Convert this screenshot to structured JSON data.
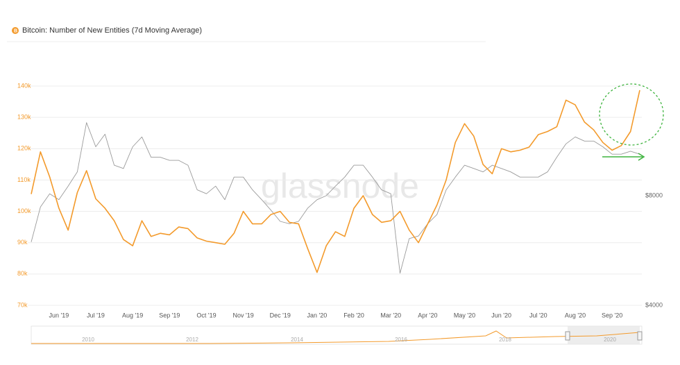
{
  "chart_data": {
    "type": "line",
    "title": "Bitcoin: Number of New Entities (7d Moving Average)",
    "watermark": "glassnode",
    "x": [
      null,
      null,
      null,
      "Jun '19",
      null,
      null,
      null,
      "Jul '19",
      null,
      null,
      null,
      "Aug '19",
      null,
      null,
      null,
      "Sep '19",
      null,
      null,
      null,
      "Oct '19",
      null,
      null,
      null,
      "Nov '19",
      null,
      null,
      null,
      "Dec '19",
      null,
      null,
      null,
      "Jan '20",
      null,
      null,
      null,
      "Feb '20",
      null,
      null,
      null,
      "Mar '20",
      null,
      null,
      null,
      "Apr '20",
      null,
      null,
      null,
      "May '20",
      null,
      null,
      null,
      "Jun '20",
      null,
      null,
      null,
      "Jul '20",
      null,
      null,
      null,
      "Aug '20",
      null,
      null,
      null,
      "Sep '20",
      null,
      null,
      null
    ],
    "series": [
      {
        "color": "#f39a2b",
        "values": [
          105500,
          119000,
          111000,
          101000,
          94000,
          106000,
          113000,
          104000,
          101000,
          97000,
          91000,
          89000,
          97000,
          92000,
          93000,
          92500,
          95000,
          94500,
          91500,
          90500,
          90000,
          89500,
          93000,
          100000,
          96000,
          96000,
          99000,
          100000,
          96500,
          96000,
          88000,
          80500,
          89000,
          93500,
          92000,
          101000,
          105000,
          99000,
          96500,
          97000,
          100000,
          94000,
          90000,
          96000,
          102000,
          110000,
          122000,
          128000,
          124000,
          115000,
          112000,
          120000,
          119000,
          119500,
          120500,
          124500,
          125500,
          127000,
          135500,
          134000,
          128500,
          126000,
          122000,
          119500,
          121000,
          125500,
          138700
        ]
      },
      {
        "color": "#9a9a9a",
        "axis": "y2",
        "values": [
          5970,
          7450,
          8100,
          7800,
          8500,
          9300,
          12700,
          10900,
          11800,
          9700,
          9500,
          10900,
          11600,
          10200,
          10200,
          10000,
          10000,
          9700,
          8300,
          8100,
          8500,
          7800,
          9000,
          9000,
          8300,
          7800,
          7300,
          6800,
          6700,
          6800,
          7400,
          7800,
          8000,
          8500,
          9000,
          9700,
          9700,
          9000,
          8300,
          8100,
          4900,
          6100,
          6200,
          6700,
          7100,
          8300,
          9000,
          9700,
          9500,
          9300,
          9700,
          9500,
          9300,
          9000,
          9000,
          9000,
          9300,
          10200,
          11100,
          11600,
          11300,
          11300,
          10900,
          10400,
          10400,
          10600,
          10400
        ]
      }
    ],
    "ylim": [
      70000,
      140000
    ],
    "yticks": [
      {
        "value": 70000,
        "label": "70k"
      },
      {
        "value": 80000,
        "label": "80k"
      },
      {
        "value": 90000,
        "label": "90k"
      },
      {
        "value": 100000,
        "label": "100k"
      },
      {
        "value": 110000,
        "label": "110k"
      },
      {
        "value": 120000,
        "label": "120k"
      },
      {
        "value": 130000,
        "label": "130k"
      },
      {
        "value": 140000,
        "label": "140k"
      }
    ],
    "y2lim": [
      4000,
      16000
    ],
    "y2log": true,
    "y2ticks": [
      {
        "value": 4000,
        "label": "$4000"
      },
      {
        "value": 8000,
        "label": "$8000"
      }
    ],
    "grid": true,
    "navigator_labels": [
      "2010",
      "2012",
      "2014",
      "2016",
      "2018",
      "2020"
    ]
  }
}
